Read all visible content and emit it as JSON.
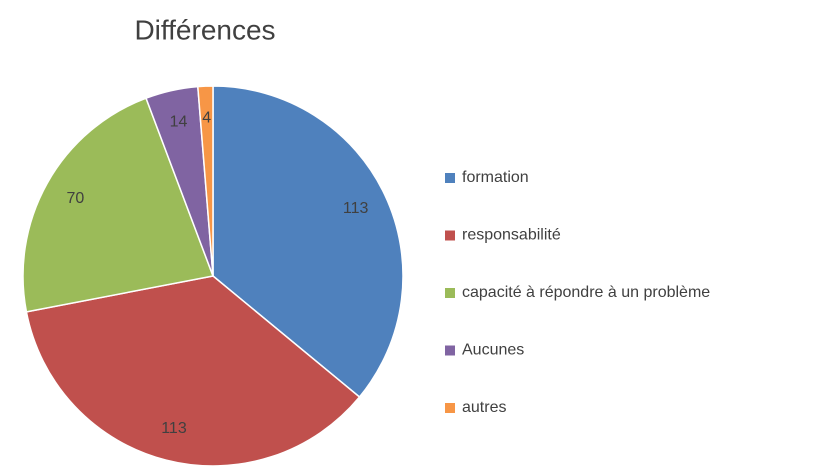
{
  "chart_data": {
    "type": "pie",
    "title": "Différences",
    "categories": [
      "formation",
      "responsabilité",
      "capacité à répondre à un problème",
      "Aucunes",
      "autres"
    ],
    "values": [
      113,
      113,
      70,
      14,
      4
    ],
    "colors": [
      "#4f81bd",
      "#c0504d",
      "#9bbb59",
      "#8064a2",
      "#f79646"
    ],
    "legend": "right"
  }
}
